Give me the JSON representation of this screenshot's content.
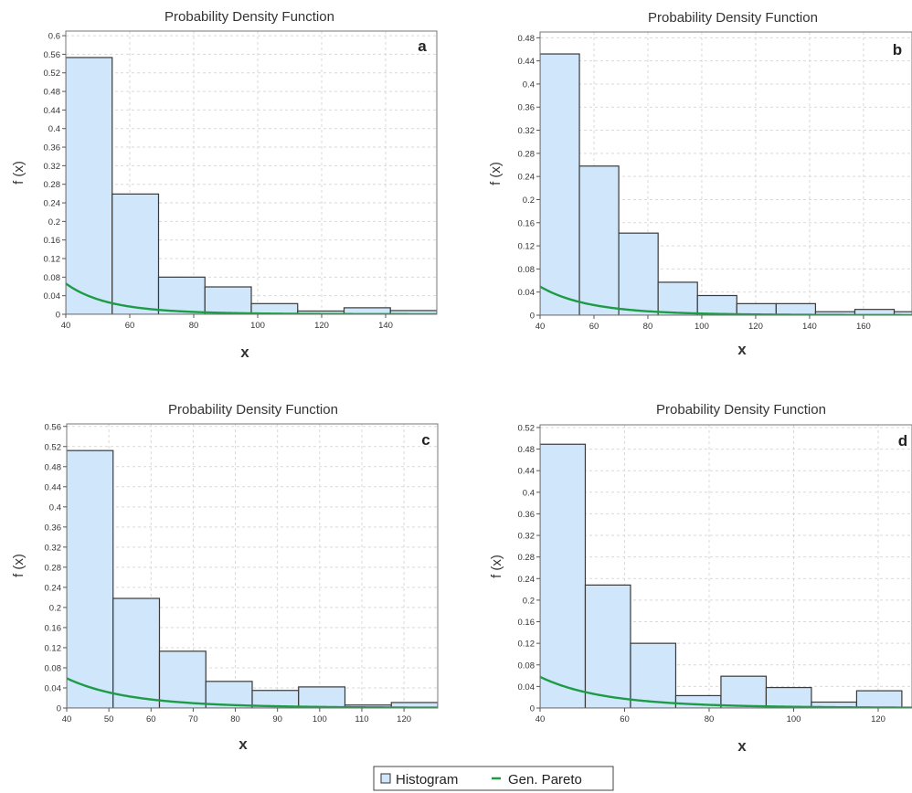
{
  "chart_data": [
    {
      "type": "bar",
      "panel": "a",
      "title": "Probability Density Function",
      "xlabel": "x",
      "ylabel": "f (x)",
      "xlim": [
        40,
        156
      ],
      "ylim": [
        0,
        0.61
      ],
      "xticks": [
        40,
        60,
        80,
        100,
        120,
        140
      ],
      "yticks": [
        0,
        0.04,
        0.08,
        0.12,
        0.16,
        0.2,
        0.24,
        0.28,
        0.32,
        0.36,
        0.4,
        0.44,
        0.48,
        0.52,
        0.56,
        0.6
      ],
      "histogram": {
        "bin_start": 40,
        "bin_width": 14.5,
        "values": [
          0.553,
          0.259,
          0.08,
          0.059,
          0.023,
          0.007,
          0.014,
          0.008
        ]
      },
      "curve": {
        "name": "Gen. Pareto",
        "x0": 40,
        "scale": 15.1,
        "shape": 0.13
      }
    },
    {
      "type": "bar",
      "panel": "b",
      "title": "Probability Density Function",
      "xlabel": "x",
      "ylabel": "f (x)",
      "xlim": [
        40,
        178
      ],
      "ylim": [
        0,
        0.49
      ],
      "xticks": [
        40,
        60,
        80,
        100,
        120,
        140,
        160
      ],
      "yticks": [
        0,
        0.04,
        0.08,
        0.12,
        0.16,
        0.2,
        0.24,
        0.28,
        0.32,
        0.36,
        0.4,
        0.44,
        0.48
      ],
      "histogram": {
        "bin_start": 40,
        "bin_width": 14.6,
        "values": [
          0.452,
          0.258,
          0.142,
          0.057,
          0.034,
          0.02,
          0.02,
          0.006,
          0.01,
          0.006
        ]
      },
      "curve": {
        "name": "Gen. Pareto",
        "x0": 40,
        "scale": 20.2,
        "shape": 0.1
      }
    },
    {
      "type": "bar",
      "panel": "c",
      "title": "Probability Density Function",
      "xlabel": "x",
      "ylabel": "f (x)",
      "xlim": [
        40,
        128
      ],
      "ylim": [
        0,
        0.565
      ],
      "xticks": [
        40,
        50,
        60,
        70,
        80,
        90,
        100,
        110,
        120
      ],
      "yticks": [
        0,
        0.04,
        0.08,
        0.12,
        0.16,
        0.2,
        0.24,
        0.28,
        0.32,
        0.36,
        0.4,
        0.44,
        0.48,
        0.52,
        0.56
      ],
      "histogram": {
        "bin_start": 40,
        "bin_width": 11,
        "values": [
          0.512,
          0.218,
          0.113,
          0.053,
          0.035,
          0.042,
          0.006,
          0.011
        ]
      },
      "curve": {
        "name": "Gen. Pareto",
        "x0": 40,
        "scale": 16.9,
        "shape": 0.13
      }
    },
    {
      "type": "bar",
      "panel": "d",
      "title": "Probability Density Function",
      "xlabel": "x",
      "ylabel": "f (x)",
      "xlim": [
        40,
        128
      ],
      "ylim": [
        0,
        0.525
      ],
      "xticks": [
        40,
        60,
        80,
        100,
        120
      ],
      "yticks": [
        0,
        0.04,
        0.08,
        0.12,
        0.16,
        0.2,
        0.24,
        0.28,
        0.32,
        0.36,
        0.4,
        0.44,
        0.48,
        0.52
      ],
      "histogram": {
        "bin_start": 40,
        "bin_width": 10.7,
        "values": [
          0.489,
          0.228,
          0.12,
          0.023,
          0.059,
          0.038,
          0.011,
          0.032
        ]
      },
      "curve": {
        "name": "Gen. Pareto",
        "x0": 40,
        "scale": 17.3,
        "shape": 0.13
      }
    }
  ],
  "legend": {
    "items": [
      {
        "label": "Histogram",
        "symbol": "square",
        "color": "#cfe6fb"
      },
      {
        "label": "Gen. Pareto",
        "symbol": "line",
        "color": "#1e9c45"
      }
    ]
  },
  "colors": {
    "bar_fill": "#cfe6fb",
    "bar_stroke": "#3a3a3a",
    "curve": "#1e9c45",
    "grid": "#d9d9d9"
  }
}
